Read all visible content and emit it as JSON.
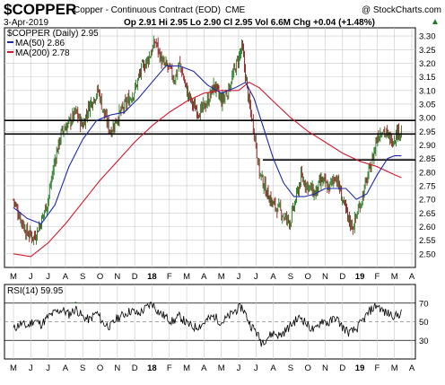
{
  "header": {
    "symbol": "$COPPER",
    "description": "Copper - Continuous Contract (EOD)",
    "exchange": "CME",
    "watermark": "@ StockCharts.com",
    "date": "3-Apr-2019",
    "ohlc": "Op 2.91  Hi 2.95  Lo 2.90  Cl 2.95  Vol 6.6M  Chg +0.04 (+1.48%)",
    "chg_arrow": "▲"
  },
  "legend": {
    "price": "$COPPER (Daily) 2.95",
    "ma50": "MA(50) 2.86",
    "ma200": "MA(200) 2.78"
  },
  "rsi_legend": "RSI(14) 59.95",
  "colors": {
    "up": "#1e7a1e",
    "down": "#8b1a1a",
    "ma50": "#1c2aa8",
    "ma200": "#d0192e",
    "grid": "#c8c8c8",
    "rsi": "#000000",
    "rsi_fill": "#3a7a3a"
  },
  "chart_data": [
    {
      "type": "line",
      "title": "$COPPER (Daily)",
      "x_months": [
        "M",
        "J",
        "J",
        "A",
        "S",
        "O",
        "N",
        "D",
        "18",
        "F",
        "M",
        "A",
        "M",
        "J",
        "J",
        "A",
        "S",
        "O",
        "N",
        "D",
        "19",
        "F",
        "M",
        "A"
      ],
      "y_ticks": [
        "3.30",
        "3.25",
        "3.20",
        "3.15",
        "3.10",
        "3.05",
        "3.00",
        "2.95",
        "2.90",
        "2.85",
        "2.80",
        "2.75",
        "2.70",
        "2.65",
        "2.60",
        "2.55",
        "2.50"
      ],
      "ylim": [
        2.45,
        3.33
      ],
      "grid": true,
      "price_path": [
        [
          0,
          2.7
        ],
        [
          0.35,
          2.64
        ],
        [
          0.75,
          2.58
        ],
        [
          1.2,
          2.56
        ],
        [
          1.6,
          2.62
        ],
        [
          2.0,
          2.7
        ],
        [
          2.4,
          2.85
        ],
        [
          2.8,
          2.95
        ],
        [
          3.2,
          2.98
        ],
        [
          3.6,
          3.02
        ],
        [
          4.0,
          2.97
        ],
        [
          4.4,
          3.05
        ],
        [
          4.9,
          3.1
        ],
        [
          5.2,
          3.02
        ],
        [
          5.6,
          2.95
        ],
        [
          6.0,
          3.0
        ],
        [
          6.5,
          3.05
        ],
        [
          7.0,
          3.1
        ],
        [
          7.4,
          3.18
        ],
        [
          7.8,
          3.22
        ],
        [
          8.2,
          3.28
        ],
        [
          8.6,
          3.2
        ],
        [
          9.0,
          3.18
        ],
        [
          9.3,
          3.14
        ],
        [
          9.6,
          3.2
        ],
        [
          10.0,
          3.1
        ],
        [
          10.4,
          3.04
        ],
        [
          10.8,
          3.02
        ],
        [
          11.2,
          3.06
        ],
        [
          11.6,
          3.12
        ],
        [
          12.0,
          3.06
        ],
        [
          12.4,
          3.1
        ],
        [
          12.8,
          3.18
        ],
        [
          13.2,
          3.26
        ],
        [
          13.35,
          3.18
        ],
        [
          13.6,
          3.05
        ],
        [
          13.9,
          2.95
        ],
        [
          14.2,
          2.8
        ],
        [
          14.6,
          2.73
        ],
        [
          15.0,
          2.68
        ],
        [
          15.4,
          2.66
        ],
        [
          15.7,
          2.63
        ],
        [
          16.0,
          2.62
        ],
        [
          16.3,
          2.7
        ],
        [
          16.6,
          2.78
        ],
        [
          17.0,
          2.75
        ],
        [
          17.4,
          2.72
        ],
        [
          17.8,
          2.77
        ],
        [
          18.2,
          2.74
        ],
        [
          18.6,
          2.79
        ],
        [
          19.0,
          2.7
        ],
        [
          19.3,
          2.63
        ],
        [
          19.6,
          2.6
        ],
        [
          19.85,
          2.65
        ],
        [
          20.1,
          2.7
        ],
        [
          20.4,
          2.77
        ],
        [
          20.7,
          2.84
        ],
        [
          21.0,
          2.93
        ],
        [
          21.3,
          2.96
        ],
        [
          21.6,
          2.93
        ],
        [
          21.9,
          2.92
        ],
        [
          22.2,
          2.95
        ],
        [
          22.4,
          2.95
        ]
      ],
      "ma50_path": [
        [
          0,
          2.67
        ],
        [
          0.8,
          2.63
        ],
        [
          1.6,
          2.61
        ],
        [
          2.4,
          2.68
        ],
        [
          3.2,
          2.82
        ],
        [
          4.0,
          2.92
        ],
        [
          4.8,
          2.99
        ],
        [
          5.6,
          3.01
        ],
        [
          6.4,
          3.02
        ],
        [
          7.2,
          3.07
        ],
        [
          8.0,
          3.13
        ],
        [
          8.8,
          3.19
        ],
        [
          9.6,
          3.19
        ],
        [
          10.4,
          3.17
        ],
        [
          11.2,
          3.12
        ],
        [
          12.0,
          3.09
        ],
        [
          12.8,
          3.11
        ],
        [
          13.4,
          3.13
        ],
        [
          13.9,
          3.07
        ],
        [
          14.4,
          2.97
        ],
        [
          15.0,
          2.85
        ],
        [
          15.6,
          2.76
        ],
        [
          16.2,
          2.71
        ],
        [
          16.8,
          2.71
        ],
        [
          17.4,
          2.72
        ],
        [
          18.0,
          2.74
        ],
        [
          18.6,
          2.74
        ],
        [
          19.2,
          2.74
        ],
        [
          19.8,
          2.7
        ],
        [
          20.4,
          2.72
        ],
        [
          21.0,
          2.79
        ],
        [
          21.6,
          2.85
        ],
        [
          22.0,
          2.86
        ],
        [
          22.4,
          2.86
        ]
      ],
      "ma200_path": [
        [
          0,
          2.5
        ],
        [
          1.0,
          2.49
        ],
        [
          2.0,
          2.54
        ],
        [
          3.0,
          2.61
        ],
        [
          4.0,
          2.69
        ],
        [
          5.0,
          2.77
        ],
        [
          6.0,
          2.84
        ],
        [
          7.0,
          2.91
        ],
        [
          8.0,
          2.97
        ],
        [
          9.0,
          3.02
        ],
        [
          10.0,
          3.06
        ],
        [
          11.0,
          3.09
        ],
        [
          12.0,
          3.1
        ],
        [
          13.0,
          3.1
        ],
        [
          13.6,
          3.13
        ],
        [
          14.2,
          3.11
        ],
        [
          15.0,
          3.06
        ],
        [
          16.0,
          3.0
        ],
        [
          17.0,
          2.95
        ],
        [
          18.0,
          2.91
        ],
        [
          19.0,
          2.87
        ],
        [
          20.0,
          2.84
        ],
        [
          21.0,
          2.82
        ],
        [
          22.0,
          2.79
        ],
        [
          22.4,
          2.78
        ]
      ],
      "hlines": [
        2.99,
        2.94
      ],
      "hline_partial": {
        "from_index": 14.4,
        "value": 2.845
      }
    },
    {
      "type": "line",
      "title": "RSI(14)",
      "y_ticks": [
        "70",
        "50",
        "30"
      ],
      "ylim": [
        10,
        90
      ],
      "levels": [
        70,
        50,
        30
      ],
      "rsi_path": [
        [
          0,
          42
        ],
        [
          0.4,
          48
        ],
        [
          0.8,
          45
        ],
        [
          1.2,
          52
        ],
        [
          1.6,
          47
        ],
        [
          2.0,
          55
        ],
        [
          2.4,
          60
        ],
        [
          2.8,
          63
        ],
        [
          3.2,
          58
        ],
        [
          3.6,
          64
        ],
        [
          4.0,
          55
        ],
        [
          4.4,
          52
        ],
        [
          4.8,
          60
        ],
        [
          5.2,
          48
        ],
        [
          5.6,
          45
        ],
        [
          6.0,
          54
        ],
        [
          6.4,
          58
        ],
        [
          6.8,
          62
        ],
        [
          7.2,
          58
        ],
        [
          7.6,
          64
        ],
        [
          8.0,
          70
        ],
        [
          8.4,
          60
        ],
        [
          8.8,
          55
        ],
        [
          9.2,
          50
        ],
        [
          9.6,
          56
        ],
        [
          10.0,
          48
        ],
        [
          10.4,
          44
        ],
        [
          10.8,
          46
        ],
        [
          11.2,
          52
        ],
        [
          11.6,
          56
        ],
        [
          12.0,
          49
        ],
        [
          12.4,
          55
        ],
        [
          12.8,
          62
        ],
        [
          13.2,
          66
        ],
        [
          13.4,
          58
        ],
        [
          13.7,
          46
        ],
        [
          14.0,
          40
        ],
        [
          14.3,
          28
        ],
        [
          14.6,
          32
        ],
        [
          15.0,
          38
        ],
        [
          15.4,
          35
        ],
        [
          15.8,
          42
        ],
        [
          16.2,
          50
        ],
        [
          16.6,
          55
        ],
        [
          17.0,
          46
        ],
        [
          17.4,
          40
        ],
        [
          17.8,
          52
        ],
        [
          18.2,
          48
        ],
        [
          18.6,
          55
        ],
        [
          19.0,
          44
        ],
        [
          19.4,
          38
        ],
        [
          19.8,
          42
        ],
        [
          20.2,
          52
        ],
        [
          20.6,
          62
        ],
        [
          21.0,
          68
        ],
        [
          21.4,
          60
        ],
        [
          21.8,
          58
        ],
        [
          22.1,
          56
        ],
        [
          22.4,
          60
        ]
      ],
      "overbought_region": [
        [
          2.6,
          3.7
        ],
        [
          4.4,
          4.8
        ]
      ]
    }
  ]
}
